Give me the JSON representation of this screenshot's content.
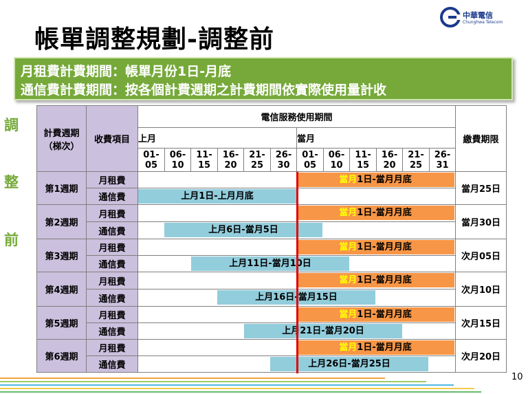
{
  "title": "帳單調整規劃-調整前",
  "logo": {
    "name_zh": "中華電信",
    "name_en": "Chunghwa Telecom"
  },
  "banner": {
    "line1": "月租費計費期間：帳單月份1日-月底",
    "line2": "通信費計費期間：按各個計費週期之計費期間依實際使用量計收"
  },
  "side_label": [
    "調",
    "整",
    "前"
  ],
  "table": {
    "cycle_header": "計費週期（梯次）",
    "item_header": "收費項目",
    "service_period_header": "電信服務使用期間",
    "due_header": "繳費期限",
    "prev_month": "上月",
    "curr_month": "當月",
    "prev_ranges": [
      "01-05",
      "06-10",
      "11-15",
      "16-20",
      "21-25",
      "26-30"
    ],
    "curr_ranges": [
      "01-05",
      "06-10",
      "11-15",
      "16-20",
      "21-25",
      "26-31"
    ],
    "rent_label": "月租費",
    "comm_label": "通信費",
    "rent_bar": {
      "highlight": "當月",
      "rest": "1日-當月月底"
    },
    "rows": [
      {
        "cycle": "第1週期",
        "comm_period": "上月1日-上月月底",
        "due": "當月25日"
      },
      {
        "cycle": "第2週期",
        "comm_period": "上月6日-當月5日",
        "due": "當月30日"
      },
      {
        "cycle": "第3週期",
        "comm_period": "上月11日-當月10日",
        "due": "次月05日"
      },
      {
        "cycle": "第4週期",
        "comm_period": "上月16日-當月15日",
        "due": "次月10日"
      },
      {
        "cycle": "第5週期",
        "comm_period": "上月21日-當月20日",
        "due": "次月15日"
      },
      {
        "cycle": "第6週期",
        "comm_period": "上月26日-當月25日",
        "due": "次月20日"
      }
    ]
  },
  "page_number": "10",
  "colors": {
    "banner": "#76a93a",
    "header_purple": "#cbc0dd",
    "rent_bar": "#f79646",
    "comm_bar": "#92cddc",
    "highlight_text": "#ffff00",
    "divider_line": "#e00000"
  }
}
